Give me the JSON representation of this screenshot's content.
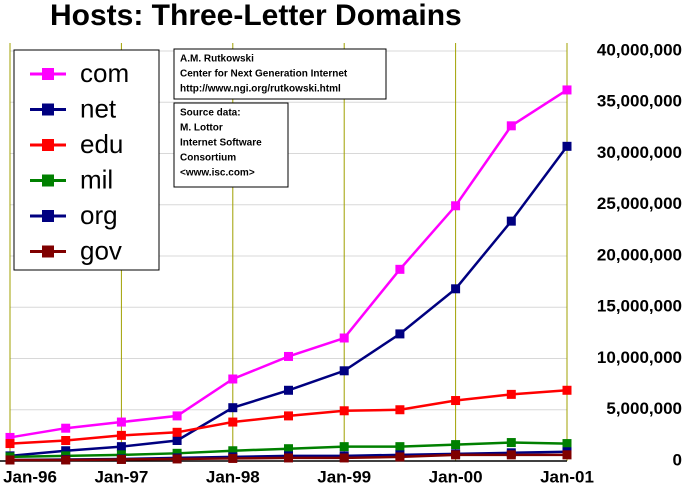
{
  "chart_data": {
    "type": "line",
    "title": "Hosts: Three-Letter Domains",
    "categories": [
      "Jan-96",
      null,
      "Jan-97",
      null,
      "Jan-98",
      null,
      "Jan-99",
      null,
      "Jan-00",
      null,
      "Jan-01"
    ],
    "series": [
      {
        "name": "com",
        "color": "#ff00ff",
        "values": [
          2300000,
          3200000,
          3800000,
          4400000,
          8000000,
          10200000,
          12000000,
          18700000,
          24900000,
          32700000,
          36200000
        ]
      },
      {
        "name": "net",
        "color": "#000080",
        "values": [
          500000,
          1000000,
          1400000,
          2000000,
          5200000,
          6900000,
          8800000,
          12400000,
          16800000,
          23400000,
          30700000
        ]
      },
      {
        "name": "edu",
        "color": "#ff0000",
        "values": [
          1700000,
          2000000,
          2500000,
          2800000,
          3800000,
          4400000,
          4900000,
          5000000,
          5900000,
          6500000,
          6900000
        ]
      },
      {
        "name": "mil",
        "color": "#008000",
        "values": [
          400000,
          500000,
          600000,
          750000,
          1000000,
          1200000,
          1400000,
          1400000,
          1600000,
          1800000,
          1700000
        ]
      },
      {
        "name": "org",
        "color": "#000080",
        "values": [
          100000,
          150000,
          200000,
          300000,
          400000,
          500000,
          500000,
          600000,
          700000,
          800000,
          900000
        ]
      },
      {
        "name": "gov",
        "color": "#800000",
        "values": [
          100000,
          100000,
          150000,
          200000,
          250000,
          300000,
          300000,
          400000,
          600000,
          600000,
          600000
        ]
      }
    ],
    "ylim": [
      0,
      40000000
    ],
    "yticks": [
      0,
      {
        "value": 5000000,
        "label": "5,000,000"
      },
      {
        "value": 10000000,
        "label": "10,000,000"
      },
      {
        "value": 15000000,
        "label": "15,000,000"
      },
      {
        "value": 20000000,
        "label": "20,000,000"
      },
      {
        "value": 25000000,
        "label": "25,000,000"
      },
      {
        "value": 30000000,
        "label": "30,000,000"
      },
      {
        "value": 35000000,
        "label": "35,000,000"
      },
      {
        "value": 40000000,
        "label": "40,000,000"
      }
    ],
    "grid": true,
    "annotations": [
      [
        "A.M. Rutkowski",
        "Center for Next Generation Internet",
        "http://www.ngi.org/rutkowski.html"
      ],
      [
        "Source data:",
        "M. Lottor",
        "Internet Software",
        "Consortium",
        "<www.isc.com>"
      ]
    ]
  }
}
